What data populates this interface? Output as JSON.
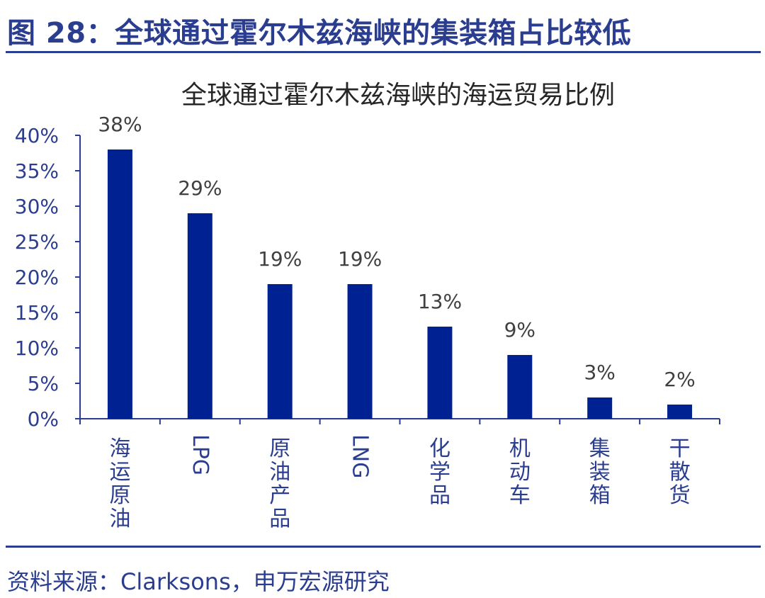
{
  "figure_title": "图 28：全球通过霍尔木兹海峡的集装箱占比较低",
  "source": "资料来源：Clarksons，申万宏源研究",
  "colors": {
    "bar": "#002192",
    "text_blue": "#2a3d8f",
    "axis": "#2a3d8f"
  },
  "chart_data": {
    "type": "bar",
    "title": "全球通过霍尔木兹海峡的海运贸易比例",
    "xlabel": "",
    "ylabel": "",
    "categories": [
      "海运原油",
      "LPG",
      "原油产品",
      "LNG",
      "化学品",
      "机动车",
      "集装箱",
      "干散货"
    ],
    "values": [
      0.38,
      0.29,
      0.19,
      0.19,
      0.13,
      0.09,
      0.03,
      0.02
    ],
    "data_labels": [
      "38%",
      "29%",
      "19%",
      "19%",
      "13%",
      "9%",
      "3%",
      "2%"
    ],
    "ylim": [
      0,
      0.4
    ],
    "yticks": [
      0,
      0.05,
      0.1,
      0.15,
      0.2,
      0.25,
      0.3,
      0.35,
      0.4
    ],
    "ytick_labels": [
      "0%",
      "5%",
      "10%",
      "15%",
      "20%",
      "25%",
      "30%",
      "35%",
      "40%"
    ],
    "grid": false,
    "legend": "none"
  }
}
